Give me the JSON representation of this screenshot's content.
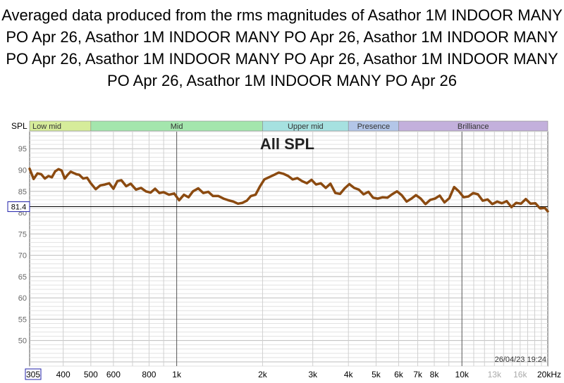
{
  "title": "Averaged data produced from the rms magnitudes of Asathor 1M INDOOR MANY PO Apr 26, Asathor 1M INDOOR MANY PO Apr 26, Asathor 1M INDOOR MANY PO Apr 26, Asathor 1M INDOOR MANY PO Apr 26, Asathor 1M INDOOR MANY PO Apr 26, Asathor 1M INDOOR MANY PO Apr 26",
  "timestamp": "26/04/23 19:24",
  "colors": {
    "curve": "#8B4A10",
    "cursor": "#000000",
    "cursor_box": "#2222aa"
  },
  "bands": [
    {
      "label": "Low mid",
      "from": 305,
      "to": 500,
      "color": "#d6ec9a"
    },
    {
      "label": "Mid",
      "from": 500,
      "to": 2000,
      "color": "#a4e6ad"
    },
    {
      "label": "Upper mid",
      "from": 2000,
      "to": 4000,
      "color": "#a6e1e0"
    },
    {
      "label": "Presence",
      "from": 4000,
      "to": 6000,
      "color": "#b3c6e8"
    },
    {
      "label": "Brilliance",
      "from": 6000,
      "to": 20000,
      "color": "#c3b0dc"
    }
  ],
  "chart_data": {
    "type": "line",
    "title": "All SPL",
    "ylabel": "SPL",
    "xlabel": "",
    "xscale": "log",
    "xlim": [
      305,
      20000
    ],
    "ylim": [
      44,
      99
    ],
    "cursor_value": "81.4",
    "cursor_y": 81.4,
    "y_ticks": [
      50,
      55,
      60,
      65,
      70,
      75,
      80,
      85,
      90,
      95
    ],
    "x_ticks": [
      {
        "value": 305,
        "label": "305"
      },
      {
        "value": 400,
        "label": "400"
      },
      {
        "value": 500,
        "label": "500"
      },
      {
        "value": 600,
        "label": "600"
      },
      {
        "value": 800,
        "label": "800"
      },
      {
        "value": 1000,
        "label": "1k"
      },
      {
        "value": 2000,
        "label": "2k"
      },
      {
        "value": 3000,
        "label": "3k"
      },
      {
        "value": 4000,
        "label": "4k"
      },
      {
        "value": 5000,
        "label": "5k"
      },
      {
        "value": 6000,
        "label": "6k"
      },
      {
        "value": 7000,
        "label": "7k"
      },
      {
        "value": 8000,
        "label": "8k"
      },
      {
        "value": 10000,
        "label": "10k"
      },
      {
        "value": 13000,
        "label": "13k"
      },
      {
        "value": 16000,
        "label": "16k"
      },
      {
        "value": 20000,
        "label": "20kHz"
      }
    ],
    "series": [
      {
        "points": [
          [
            305,
            90.3
          ],
          [
            315,
            87.9
          ],
          [
            325,
            89.2
          ],
          [
            335,
            89.0
          ],
          [
            345,
            88.0
          ],
          [
            355,
            88.6
          ],
          [
            365,
            88.3
          ],
          [
            375,
            89.7
          ],
          [
            385,
            90.2
          ],
          [
            395,
            89.9
          ],
          [
            405,
            88.0
          ],
          [
            415,
            88.9
          ],
          [
            425,
            89.6
          ],
          [
            435,
            89.3
          ],
          [
            445,
            89.0
          ],
          [
            455,
            88.9
          ],
          [
            470,
            88.0
          ],
          [
            485,
            88.2
          ],
          [
            500,
            86.9
          ],
          [
            520,
            85.5
          ],
          [
            540,
            86.4
          ],
          [
            560,
            86.6
          ],
          [
            580,
            86.9
          ],
          [
            600,
            85.6
          ],
          [
            620,
            87.4
          ],
          [
            640,
            87.6
          ],
          [
            665,
            86.2
          ],
          [
            690,
            86.8
          ],
          [
            720,
            85.4
          ],
          [
            750,
            85.8
          ],
          [
            780,
            85.0
          ],
          [
            810,
            84.7
          ],
          [
            840,
            85.6
          ],
          [
            870,
            84.6
          ],
          [
            900,
            84.8
          ],
          [
            940,
            84.2
          ],
          [
            980,
            84.5
          ],
          [
            1020,
            82.9
          ],
          [
            1060,
            84.2
          ],
          [
            1100,
            83.6
          ],
          [
            1140,
            85.0
          ],
          [
            1190,
            85.7
          ],
          [
            1240,
            84.6
          ],
          [
            1290,
            84.9
          ],
          [
            1340,
            83.9
          ],
          [
            1400,
            83.9
          ],
          [
            1460,
            83.3
          ],
          [
            1520,
            82.9
          ],
          [
            1580,
            82.6
          ],
          [
            1640,
            82.1
          ],
          [
            1700,
            82.3
          ],
          [
            1760,
            82.8
          ],
          [
            1820,
            83.9
          ],
          [
            1890,
            84.2
          ],
          [
            1960,
            86.2
          ],
          [
            2030,
            87.8
          ],
          [
            2120,
            88.4
          ],
          [
            2200,
            88.9
          ],
          [
            2280,
            89.4
          ],
          [
            2370,
            89.1
          ],
          [
            2460,
            88.6
          ],
          [
            2550,
            87.8
          ],
          [
            2650,
            88.1
          ],
          [
            2750,
            87.4
          ],
          [
            2860,
            86.9
          ],
          [
            2970,
            87.7
          ],
          [
            3080,
            86.6
          ],
          [
            3200,
            86.9
          ],
          [
            3330,
            85.8
          ],
          [
            3460,
            86.8
          ],
          [
            3600,
            84.6
          ],
          [
            3740,
            84.4
          ],
          [
            3880,
            85.7
          ],
          [
            4030,
            86.7
          ],
          [
            4190,
            85.8
          ],
          [
            4350,
            85.4
          ],
          [
            4520,
            84.3
          ],
          [
            4700,
            84.9
          ],
          [
            4880,
            83.5
          ],
          [
            5070,
            83.3
          ],
          [
            5270,
            83.6
          ],
          [
            5480,
            83.5
          ],
          [
            5690,
            84.3
          ],
          [
            5920,
            85.0
          ],
          [
            6150,
            84.1
          ],
          [
            6400,
            82.6
          ],
          [
            6650,
            83.3
          ],
          [
            6900,
            84.1
          ],
          [
            7170,
            83.3
          ],
          [
            7450,
            82.0
          ],
          [
            7740,
            83.0
          ],
          [
            8040,
            83.3
          ],
          [
            8360,
            84.0
          ],
          [
            8690,
            82.4
          ],
          [
            9030,
            83.4
          ],
          [
            9390,
            86.0
          ],
          [
            9760,
            85.0
          ],
          [
            10140,
            83.6
          ],
          [
            10540,
            83.8
          ],
          [
            10950,
            84.6
          ],
          [
            11380,
            84.3
          ],
          [
            11830,
            82.8
          ],
          [
            12300,
            83.1
          ],
          [
            12780,
            82.0
          ],
          [
            13290,
            82.6
          ],
          [
            13810,
            82.2
          ],
          [
            14350,
            82.7
          ],
          [
            14920,
            81.3
          ],
          [
            15500,
            82.3
          ],
          [
            16110,
            82.1
          ],
          [
            16750,
            83.2
          ],
          [
            17400,
            82.1
          ],
          [
            18090,
            82.2
          ],
          [
            18800,
            81.0
          ],
          [
            19540,
            81.1
          ],
          [
            20000,
            80.3
          ]
        ]
      }
    ]
  }
}
